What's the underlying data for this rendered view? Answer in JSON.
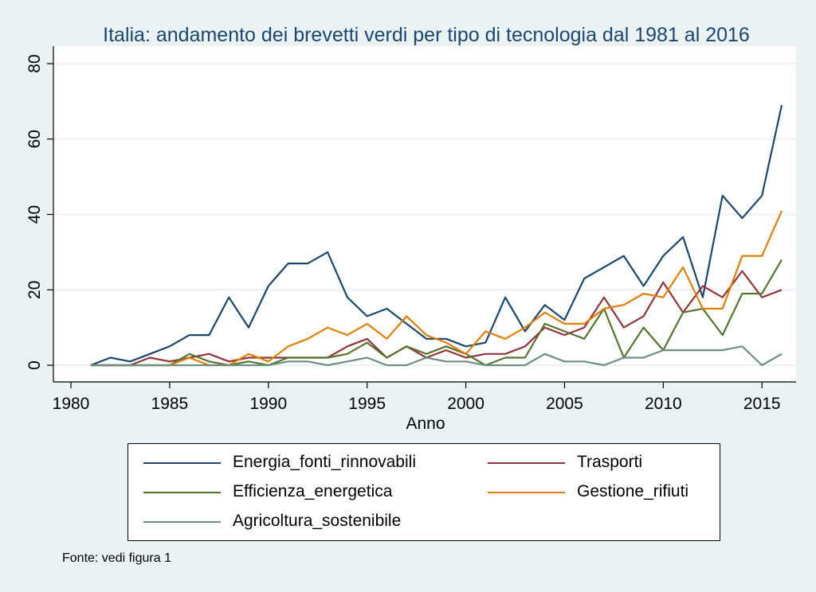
{
  "chart_data": {
    "type": "line",
    "title": "Italia: andamento dei brevetti verdi per tipo di tecnologia dal 1981 al 2016",
    "xlabel": "Anno",
    "ylabel": "",
    "xlim": [
      1980,
      2016
    ],
    "ylim": [
      0,
      80
    ],
    "xticks": [
      1980,
      1985,
      1990,
      1995,
      2000,
      2005,
      2010,
      2015
    ],
    "yticks": [
      0,
      20,
      40,
      60,
      80
    ],
    "grid": "horizontal",
    "legend_position": "bottom",
    "x": [
      1981,
      1982,
      1983,
      1984,
      1985,
      1986,
      1987,
      1988,
      1989,
      1990,
      1991,
      1992,
      1993,
      1994,
      1995,
      1996,
      1997,
      1998,
      1999,
      2000,
      2001,
      2002,
      2003,
      2004,
      2005,
      2006,
      2007,
      2008,
      2009,
      2010,
      2011,
      2012,
      2013,
      2014,
      2015,
      2016
    ],
    "series": [
      {
        "name": "Energia_fonti_rinnovabili",
        "color": "#1a476f",
        "values": [
          0,
          2,
          1,
          3,
          5,
          8,
          8,
          18,
          10,
          21,
          27,
          27,
          30,
          18,
          13,
          15,
          11,
          7,
          7,
          5,
          6,
          18,
          9,
          16,
          12,
          23,
          26,
          29,
          21,
          29,
          34,
          18,
          45,
          39,
          45,
          69
        ]
      },
      {
        "name": "Trasporti",
        "color": "#90353b",
        "values": [
          0,
          0,
          0,
          2,
          1,
          2,
          3,
          1,
          2,
          2,
          2,
          2,
          2,
          5,
          7,
          2,
          5,
          2,
          4,
          2,
          3,
          3,
          5,
          10,
          8,
          10,
          18,
          10,
          13,
          22,
          14,
          21,
          18,
          25,
          18,
          20
        ]
      },
      {
        "name": "Efficienza_energetica",
        "color": "#55752f",
        "values": [
          0,
          0,
          0,
          0,
          0,
          3,
          1,
          0,
          1,
          0,
          2,
          2,
          2,
          3,
          6,
          2,
          5,
          3,
          5,
          3,
          0,
          2,
          2,
          11,
          9,
          7,
          15,
          2,
          10,
          4,
          14,
          15,
          8,
          19,
          19,
          28
        ]
      },
      {
        "name": "Gestione_rifiuti",
        "color": "#e37e00",
        "values": [
          0,
          0,
          0,
          0,
          0,
          2,
          0,
          0,
          3,
          1,
          5,
          7,
          10,
          8,
          11,
          7,
          13,
          8,
          6,
          3,
          9,
          7,
          10,
          14,
          11,
          11,
          15,
          16,
          19,
          18,
          26,
          15,
          15,
          29,
          29,
          41
        ]
      },
      {
        "name": "Agricoltura_sostenibile",
        "color": "#6e8e84",
        "values": [
          0,
          0,
          0,
          0,
          0,
          0,
          0,
          0,
          0,
          0,
          1,
          1,
          0,
          1,
          2,
          0,
          0,
          2,
          1,
          1,
          0,
          0,
          0,
          3,
          1,
          1,
          0,
          2,
          2,
          4,
          4,
          4,
          4,
          5,
          0,
          3
        ]
      }
    ]
  },
  "legend": {
    "items": [
      {
        "label": "Energia_fonti_rinnovabili",
        "color": "#1a476f"
      },
      {
        "label": "Trasporti",
        "color": "#90353b"
      },
      {
        "label": "Efficienza_energetica",
        "color": "#55752f"
      },
      {
        "label": "Gestione_rifiuti",
        "color": "#e37e00"
      },
      {
        "label": "Agricoltura_sostenibile",
        "color": "#6e8e84"
      }
    ]
  },
  "note": "Fonte: vedi figura 1"
}
